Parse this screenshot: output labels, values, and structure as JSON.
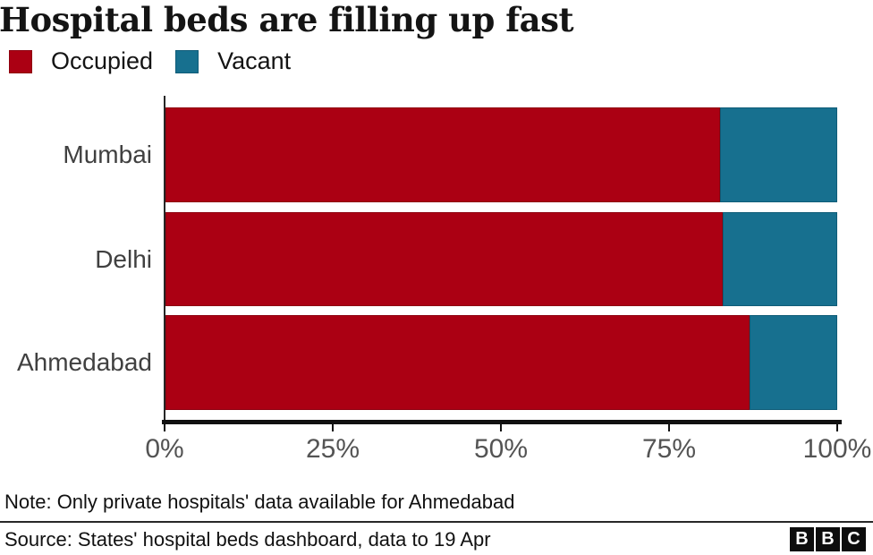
{
  "header": {
    "title": "Hospital beds are filling up fast"
  },
  "legend": [
    {
      "label": "Occupied",
      "color": "#AB0013",
      "border": "#8e000f"
    },
    {
      "label": "Vacant",
      "color": "#17708F",
      "border": "#0f5c78"
    }
  ],
  "chart_data": {
    "type": "bar",
    "orientation": "horizontal",
    "stacked": true,
    "title": "Hospital beds are filling up fast",
    "categories": [
      "Mumbai",
      "Delhi",
      "Ahmedabad"
    ],
    "series": [
      {
        "name": "Occupied",
        "color": "#AB0013",
        "border": "#8e000f",
        "values": [
          82.5,
          83,
          87
        ]
      },
      {
        "name": "Vacant",
        "color": "#17708F",
        "border": "#0f5c78",
        "values": [
          17.5,
          17,
          13
        ]
      }
    ],
    "x_ticks": [
      "0%",
      "25%",
      "50%",
      "75%",
      "100%"
    ],
    "xlim": [
      0,
      100
    ],
    "xlabel": "",
    "ylabel": "",
    "grid": false,
    "legend_position": "top"
  },
  "footer": {
    "note": "Note: Only private hospitals' data available for Ahmedabad",
    "source": "Source: States' hospital beds dashboard, data to 19 Apr",
    "logo_letters": [
      "B",
      "B",
      "C"
    ]
  }
}
